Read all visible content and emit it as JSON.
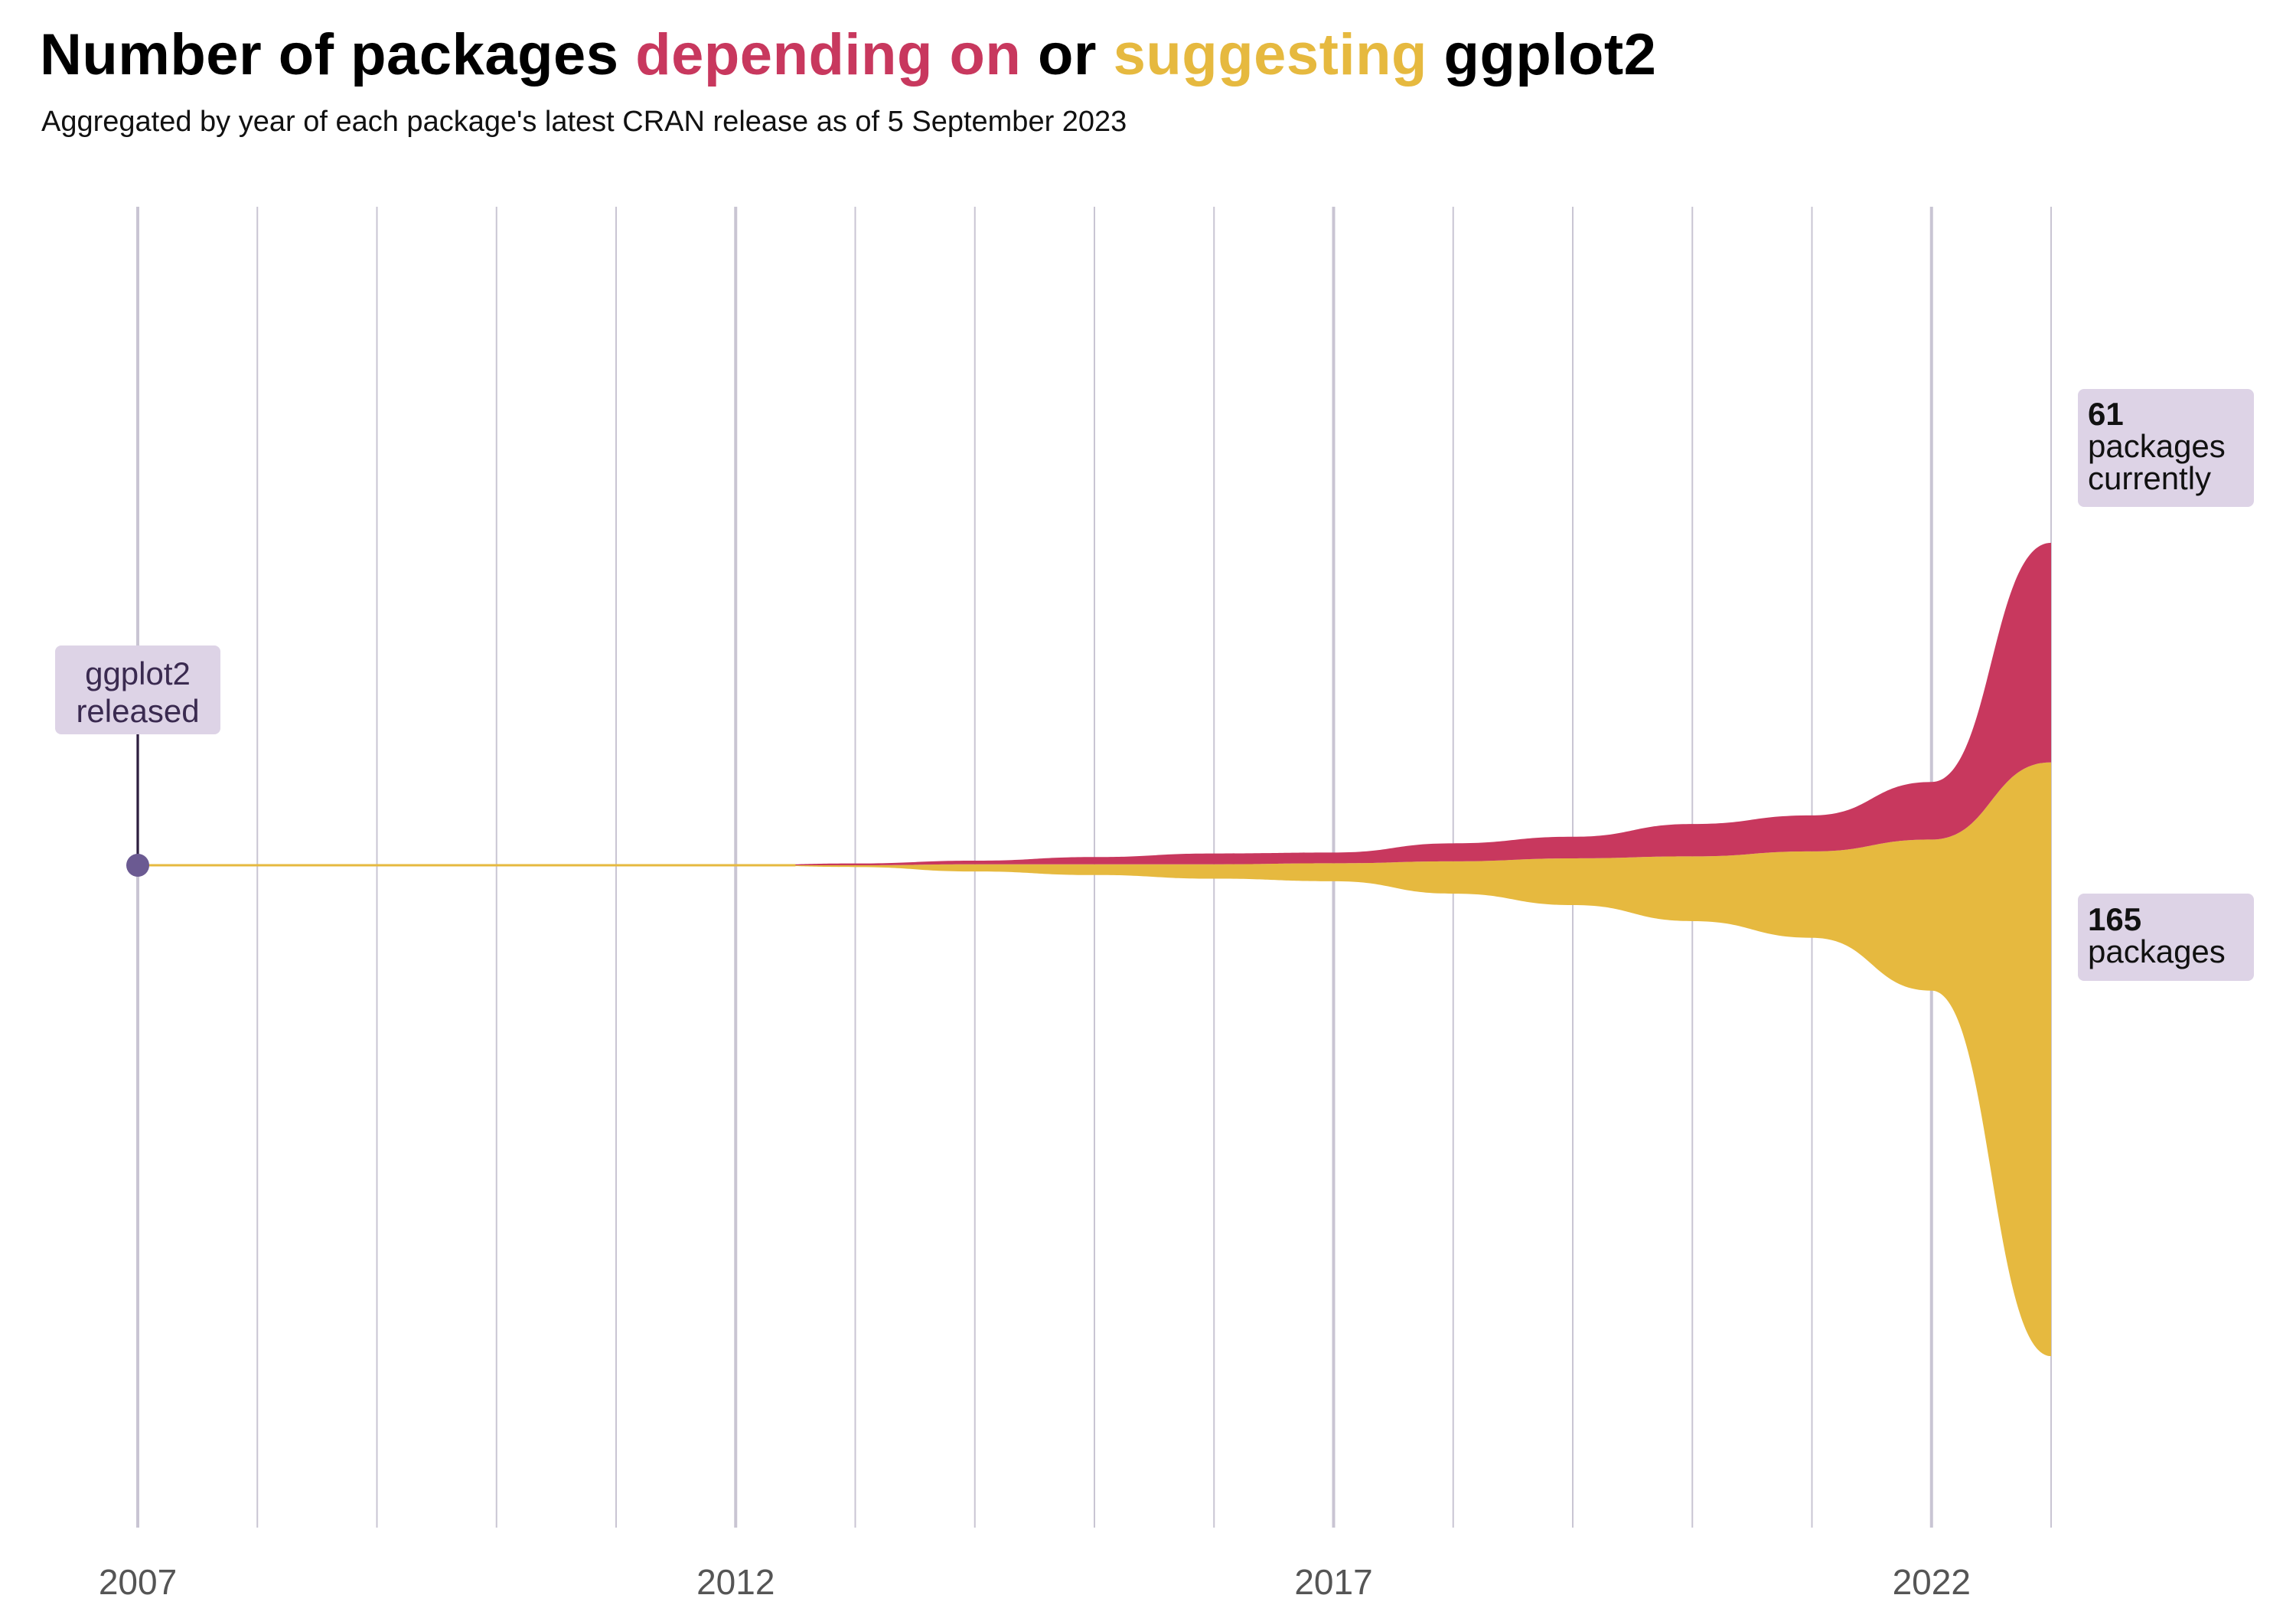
{
  "title": {
    "part1": "Number of packages ",
    "depending": "depending on",
    "part2": " or ",
    "suggesting": "suggesting",
    "part3": " ggplot2"
  },
  "subtitle": "Aggregated by year of each package's latest CRAN release as of 5 September 2023",
  "colors": {
    "depending": "#C8385E",
    "suggesting": "#E6B93F",
    "annotation_bg": "#DDD3E6",
    "release_point": "#6B5A92",
    "gridline": "#C9C5D3"
  },
  "annotations": {
    "release": {
      "line1": "ggplot2",
      "line2": "released"
    },
    "depending_total": {
      "value": "61",
      "line1": "packages",
      "line2": "currently"
    },
    "suggesting_total": {
      "value": "165",
      "line1": "packages"
    }
  },
  "chart_data": {
    "type": "area",
    "subtype": "streamgraph",
    "x_ticks": [
      2007,
      2012,
      2017,
      2022
    ],
    "xlim": [
      2007,
      2023
    ],
    "grid": "vertical lines at every year",
    "legend": "none (series identified by title colors)",
    "x": [
      2007,
      2008,
      2009,
      2010,
      2011,
      2012,
      2013,
      2014,
      2015,
      2016,
      2017,
      2018,
      2019,
      2020,
      2021,
      2022,
      2023
    ],
    "series": [
      {
        "name": "depending on",
        "values": [
          0,
          0,
          0,
          0,
          0,
          0,
          0.5,
          1,
          2,
          3,
          3,
          5,
          6,
          9,
          10,
          16,
          61
        ]
      },
      {
        "name": "suggesting",
        "values": [
          0,
          0,
          0,
          0,
          0,
          0,
          0.5,
          2,
          3,
          4,
          5,
          9,
          13,
          18,
          24,
          42,
          165
        ]
      }
    ],
    "annotations": [
      {
        "x": 2007,
        "text": "ggplot2 released"
      },
      {
        "x": 2023,
        "series": "depending on",
        "text": "61 packages currently"
      },
      {
        "x": 2023,
        "series": "suggesting",
        "text": "165 packages"
      }
    ]
  }
}
